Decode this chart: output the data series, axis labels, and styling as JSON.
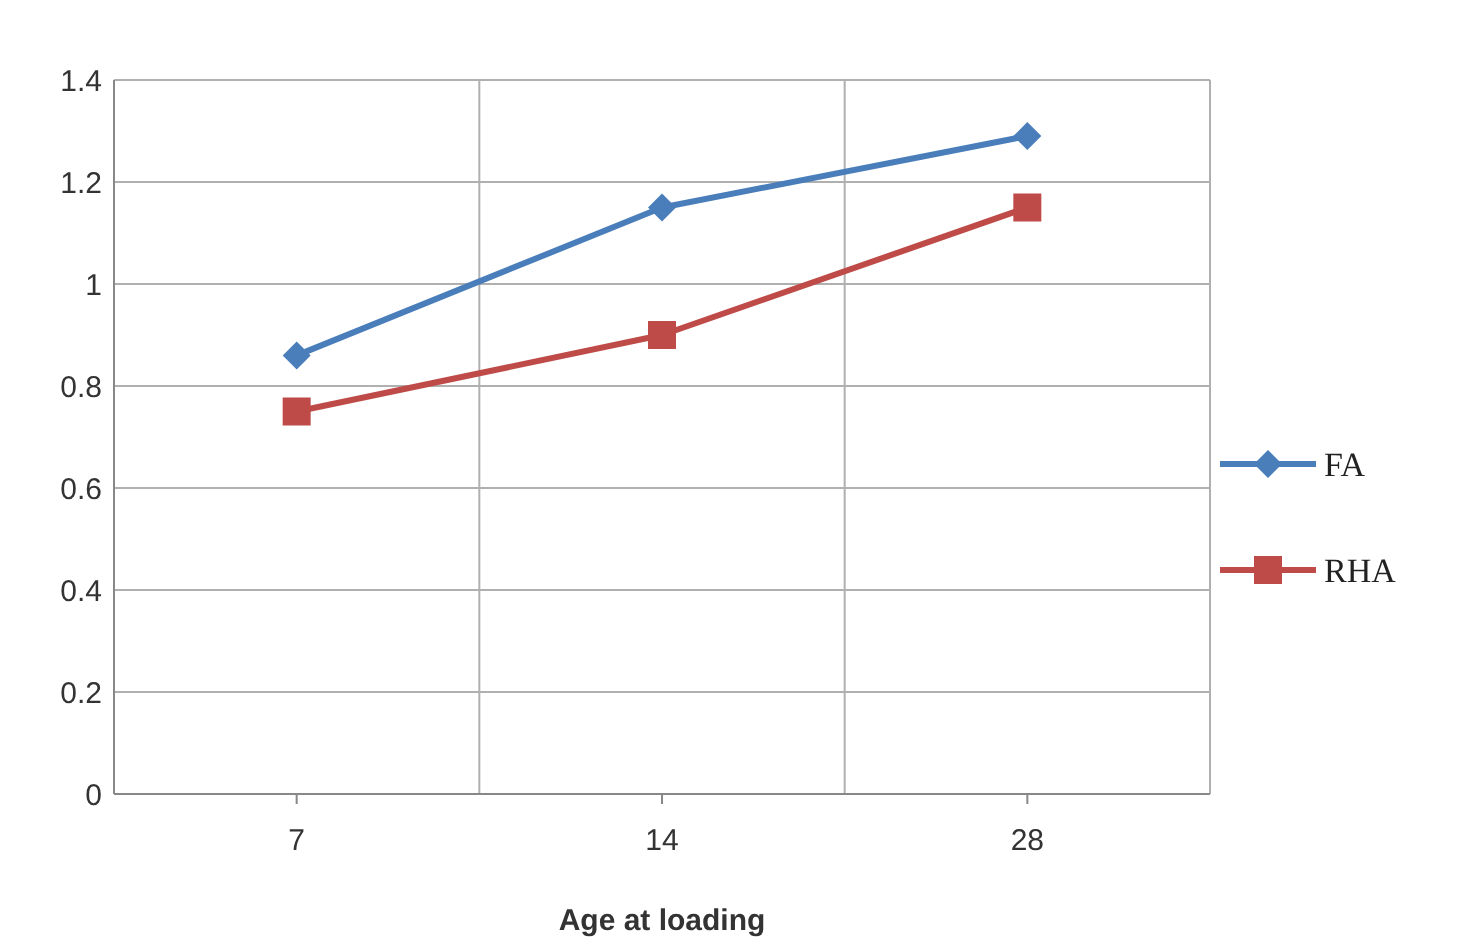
{
  "chart_data": {
    "type": "line",
    "xlabel": "Age at loading",
    "categories": [
      "7",
      "14",
      "28"
    ],
    "series": [
      {
        "name": "FA",
        "color": "#4a7ebb",
        "marker": "diamond",
        "values": [
          0.86,
          1.15,
          1.29
        ]
      },
      {
        "name": "RHA",
        "color": "#be4b48",
        "marker": "square",
        "values": [
          0.75,
          0.9,
          1.15
        ]
      }
    ],
    "ylim": [
      0,
      1.4
    ],
    "yticks": [
      0,
      0.2,
      0.4,
      0.6,
      0.8,
      1,
      1.2,
      1.4
    ],
    "grid": true,
    "legend": "right"
  }
}
